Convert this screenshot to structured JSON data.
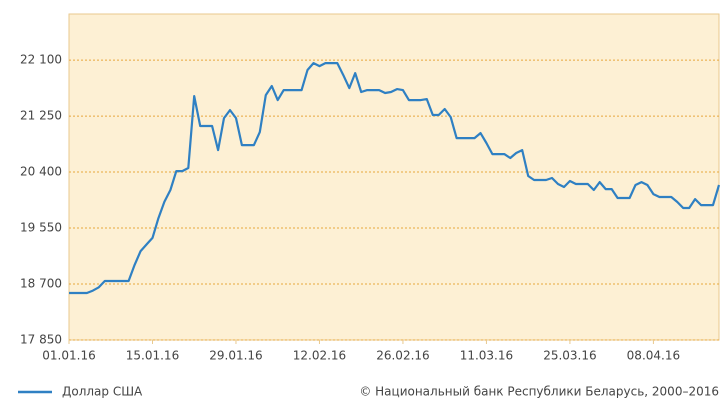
{
  "chart_data": {
    "type": "line",
    "x": [
      "01.01.16",
      "02.01.16",
      "03.01.16",
      "04.01.16",
      "05.01.16",
      "06.01.16",
      "07.01.16",
      "08.01.16",
      "09.01.16",
      "10.01.16",
      "11.01.16",
      "12.01.16",
      "13.01.16",
      "14.01.16",
      "15.01.16",
      "16.01.16",
      "17.01.16",
      "18.01.16",
      "19.01.16",
      "20.01.16",
      "21.01.16",
      "22.01.16",
      "23.01.16",
      "24.01.16",
      "25.01.16",
      "26.01.16",
      "27.01.16",
      "28.01.16",
      "29.01.16",
      "30.01.16",
      "31.01.16",
      "01.02.16",
      "02.02.16",
      "03.02.16",
      "04.02.16",
      "05.02.16",
      "06.02.16",
      "07.02.16",
      "08.02.16",
      "09.02.16",
      "10.02.16",
      "11.02.16",
      "12.02.16",
      "13.02.16",
      "14.02.16",
      "15.02.16",
      "16.02.16",
      "17.02.16",
      "18.02.16",
      "19.02.16",
      "20.02.16",
      "21.02.16",
      "22.02.16",
      "23.02.16",
      "24.02.16",
      "25.02.16",
      "26.02.16",
      "27.02.16",
      "28.02.16",
      "29.02.16",
      "01.03.16",
      "02.03.16",
      "03.03.16",
      "04.03.16",
      "05.03.16",
      "06.03.16",
      "07.03.16",
      "08.03.16",
      "09.03.16",
      "10.03.16",
      "11.03.16",
      "12.03.16",
      "13.03.16",
      "14.03.16",
      "15.03.16",
      "16.03.16",
      "17.03.16",
      "18.03.16",
      "19.03.16",
      "20.03.16",
      "21.03.16",
      "22.03.16",
      "23.03.16",
      "24.03.16",
      "25.03.16",
      "26.03.16",
      "27.03.16",
      "28.03.16",
      "29.03.16",
      "30.03.16",
      "31.03.16",
      "01.04.16",
      "02.04.16",
      "03.04.16",
      "04.04.16",
      "05.04.16",
      "06.04.16",
      "07.04.16",
      "08.04.16",
      "09.04.16",
      "10.04.16",
      "11.04.16",
      "12.04.16",
      "13.04.16",
      "14.04.16",
      "15.04.16",
      "16.04.16",
      "17.04.16",
      "18.04.16",
      "19.04.16"
    ],
    "series": [
      {
        "name": "Доллар США",
        "color": "#2f80c3",
        "values": [
          18563,
          18563,
          18563,
          18563,
          18600,
          18650,
          18746,
          18746,
          18746,
          18746,
          18746,
          18990,
          19200,
          19300,
          19400,
          19700,
          19950,
          20127,
          20415,
          20415,
          20461,
          21554,
          21099,
          21099,
          21099,
          20734,
          21220,
          21341,
          21220,
          20810,
          20810,
          20810,
          21007,
          21569,
          21706,
          21493,
          21645,
          21645,
          21645,
          21645,
          21949,
          22055,
          22009,
          22055,
          22055,
          22055,
          21873,
          21675,
          21903,
          21615,
          21645,
          21645,
          21645,
          21600,
          21615,
          21660,
          21645,
          21493,
          21493,
          21493,
          21508,
          21266,
          21266,
          21357,
          21235,
          20916,
          20916,
          20916,
          20916,
          20992,
          20841,
          20673,
          20673,
          20673,
          20613,
          20689,
          20734,
          20340,
          20279,
          20279,
          20279,
          20310,
          20218,
          20173,
          20264,
          20218,
          20218,
          20218,
          20127,
          20248,
          20142,
          20142,
          20006,
          20006,
          20006,
          20203,
          20248,
          20203,
          20066,
          20021,
          20021,
          20021,
          19945,
          19854,
          19854,
          19990,
          19899,
          19899,
          19899,
          20203
        ]
      }
    ],
    "xlim": [
      "01.01.16",
      "19.04.16"
    ],
    "xticks": [
      "01.01.16",
      "15.01.16",
      "29.01.16",
      "12.02.16",
      "26.02.16",
      "11.03.16",
      "25.03.16",
      "08.04.16"
    ],
    "ylim": [
      17850,
      22800
    ],
    "yticks": [
      {
        "value": 17850,
        "label": "17 850"
      },
      {
        "value": 18700,
        "label": "18 700"
      },
      {
        "value": 19550,
        "label": "19 550"
      },
      {
        "value": 20400,
        "label": "20 400"
      },
      {
        "value": 21250,
        "label": "21 250"
      },
      {
        "value": 22100,
        "label": "22 100"
      }
    ],
    "grid": true,
    "source": "© Национальный банк Республики Беларусь, 2000–2016"
  }
}
